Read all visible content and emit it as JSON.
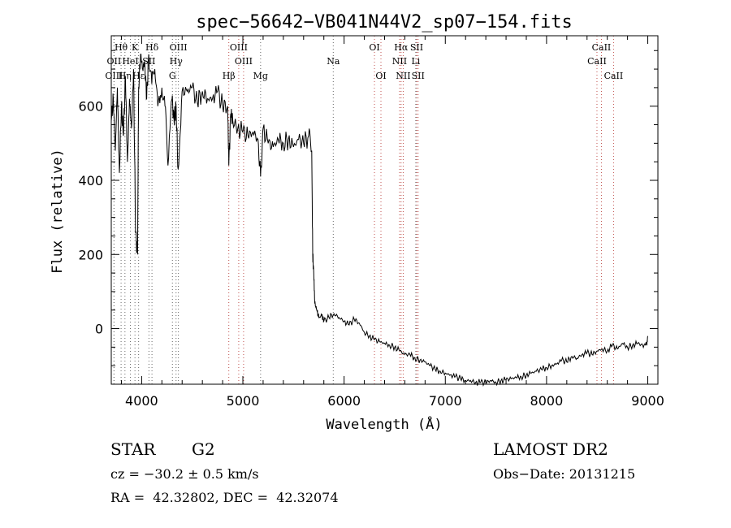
{
  "chart_data": {
    "type": "line",
    "title": "spec−56642−VB041N44V2_sp07−154.fits",
    "xlabel": "Wavelength (Å)",
    "ylabel": "Flux (relative)",
    "xlim": [
      3700,
      9100
    ],
    "ylim": [
      -150,
      790
    ],
    "x_ticks": [
      4000,
      5000,
      6000,
      7000,
      8000,
      9000
    ],
    "y_ticks": [
      0,
      200,
      400,
      600
    ],
    "grid": false,
    "color": "#000000",
    "spectrum": {
      "x": [
        3700,
        3720,
        3740,
        3760,
        3780,
        3800,
        3820,
        3840,
        3860,
        3880,
        3900,
        3920,
        3940,
        3960,
        3970,
        3990,
        4010,
        4030,
        4050,
        4070,
        4100,
        4130,
        4160,
        4200,
        4230,
        4260,
        4300,
        4320,
        4340,
        4360,
        4400,
        4450,
        4500,
        4550,
        4600,
        4650,
        4700,
        4750,
        4800,
        4850,
        4861,
        4880,
        4900,
        4950,
        5000,
        5050,
        5100,
        5150,
        5175,
        5200,
        5250,
        5300,
        5350,
        5400,
        5450,
        5500,
        5550,
        5600,
        5650,
        5680,
        5690,
        5700,
        5710,
        5730,
        5750,
        5780,
        5800,
        5850,
        5900,
        5950,
        6000,
        6050,
        6100,
        6150,
        6200,
        6250,
        6300,
        6350,
        6400,
        6450,
        6500,
        6550,
        6600,
        6650,
        6700,
        6750,
        6800,
        6850,
        6900,
        6950,
        7000,
        7050,
        7100,
        7150,
        7200,
        7250,
        7300,
        7350,
        7400,
        7450,
        7500,
        7550,
        7600,
        7650,
        7700,
        7750,
        7800,
        7850,
        7900,
        7950,
        8000,
        8050,
        8100,
        8150,
        8200,
        8250,
        8300,
        8350,
        8400,
        8450,
        8500,
        8550,
        8600,
        8650,
        8700,
        8750,
        8800,
        8850,
        8900,
        8950,
        8990,
        9000
      ],
      "y": [
        560,
        620,
        480,
        650,
        420,
        600,
        520,
        680,
        450,
        620,
        540,
        700,
        260,
        200,
        650,
        740,
        700,
        720,
        620,
        740,
        660,
        700,
        600,
        650,
        600,
        440,
        620,
        560,
        600,
        430,
        640,
        640,
        650,
        610,
        640,
        620,
        620,
        640,
        600,
        600,
        440,
        580,
        560,
        540,
        530,
        520,
        530,
        510,
        410,
        540,
        500,
        490,
        510,
        500,
        510,
        490,
        510,
        500,
        520,
        480,
        200,
        150,
        70,
        50,
        30,
        35,
        20,
        30,
        40,
        30,
        20,
        10,
        25,
        15,
        -10,
        -20,
        -30,
        -35,
        -40,
        -45,
        -50,
        -60,
        -70,
        -70,
        -80,
        -85,
        -90,
        -100,
        -110,
        -115,
        -120,
        -125,
        -130,
        -135,
        -140,
        -140,
        -145,
        -145,
        -145,
        -140,
        -145,
        -140,
        -138,
        -135,
        -132,
        -130,
        -125,
        -120,
        -115,
        -110,
        -105,
        -100,
        -95,
        -85,
        -90,
        -75,
        -80,
        -70,
        -65,
        -70,
        -60,
        -55,
        -60,
        -45,
        -55,
        -40,
        -50,
        -45,
        -40,
        -45,
        -45,
        -20
      ]
    },
    "lines_black": [
      {
        "label": "Hθ",
        "x": 3797,
        "row": 0
      },
      {
        "label": "K",
        "x": 3934,
        "row": 0
      },
      {
        "label": "Hδ",
        "x": 4102,
        "row": 0
      },
      {
        "label": "OIII",
        "x": 4363,
        "row": 0
      },
      {
        "label": "OIII",
        "x": 4959,
        "row": 0
      },
      {
        "label": "OI",
        "x": 6300,
        "row": 0
      },
      {
        "label": "Hα",
        "x": 6563,
        "row": 0
      },
      {
        "label": "SII",
        "x": 6717,
        "row": 0
      },
      {
        "label": "CaII",
        "x": 8542,
        "row": 0
      },
      {
        "label": "OII",
        "x": 3727,
        "row": 1
      },
      {
        "label": "HeI",
        "x": 3889,
        "row": 1
      },
      {
        "label": "SII",
        "x": 4072,
        "row": 1
      },
      {
        "label": "Hγ",
        "x": 4340,
        "row": 1
      },
      {
        "label": "OIII",
        "x": 5007,
        "row": 1
      },
      {
        "label": "Na",
        "x": 5893,
        "row": 1
      },
      {
        "label": "NII",
        "x": 6548,
        "row": 1
      },
      {
        "label": "Li",
        "x": 6708,
        "row": 1
      },
      {
        "label": "CaII",
        "x": 8498,
        "row": 1
      },
      {
        "label": "OIII",
        "x": 3727,
        "row": 2
      },
      {
        "label": "Hη",
        "x": 3835,
        "row": 2
      },
      {
        "label": "Hε",
        "x": 3970,
        "row": 2
      },
      {
        "label": "G",
        "x": 4304,
        "row": 2
      },
      {
        "label": "Hβ",
        "x": 4861,
        "row": 2
      },
      {
        "label": "Mg",
        "x": 5175,
        "row": 2
      },
      {
        "label": "OI",
        "x": 6364,
        "row": 2
      },
      {
        "label": "NII",
        "x": 6584,
        "row": 2
      },
      {
        "label": "SII",
        "x": 6731,
        "row": 2
      },
      {
        "label": "CaII",
        "x": 8662,
        "row": 2
      }
    ],
    "line_colors": {
      "emission": "#c0504d",
      "absorption": "#666666"
    }
  },
  "info": {
    "object_class": "STAR",
    "subclass": "G2",
    "survey": "LAMOST DR2",
    "cz": "cz = −30.2 ± 0.5 km/s",
    "obs_date": "Obs−Date: 20131215",
    "coords": "RA =  42.32802, DEC =  42.32074"
  }
}
